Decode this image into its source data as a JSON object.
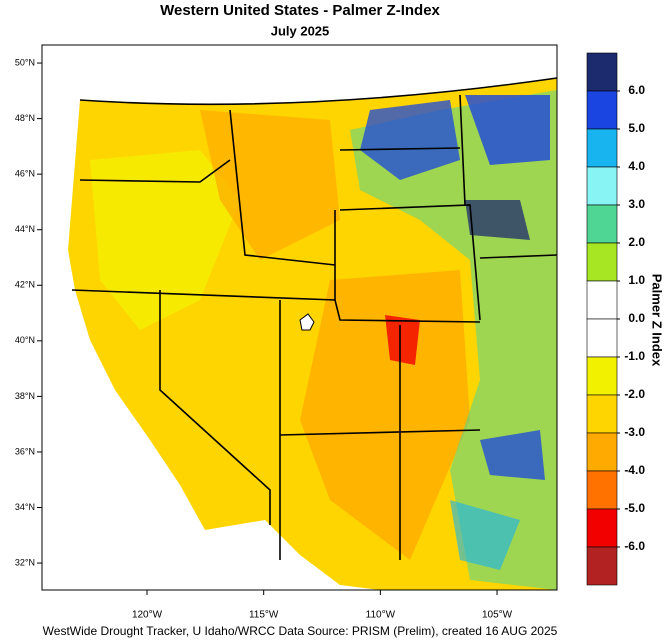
{
  "map": {
    "title": "Western United States - Palmer Z-Index",
    "subtitle": "July 2025",
    "footer": "WestWide Drought Tracker, U Idaho/WRCC Data Source: PRISM (Prelim), created 16 AUG 2025",
    "lonlim": [
      -124.5,
      -102.43
    ],
    "latlim": [
      31.03,
      50.65
    ],
    "latticks": [
      {
        "value": 50,
        "label": "50°N"
      },
      {
        "value": 48,
        "label": "48°N"
      },
      {
        "value": 46,
        "label": "46°N"
      },
      {
        "value": 44,
        "label": "44°N"
      },
      {
        "value": 42,
        "label": "42°N"
      },
      {
        "value": 40,
        "label": "40°N"
      },
      {
        "value": 38,
        "label": "38°N"
      },
      {
        "value": 36,
        "label": "36°N"
      },
      {
        "value": 34,
        "label": "34°N"
      },
      {
        "value": 32,
        "label": "32°N"
      }
    ],
    "lonticks": [
      {
        "value": -120,
        "label": "120°W"
      },
      {
        "value": -115,
        "label": "115°W"
      },
      {
        "value": -110,
        "label": "110°W"
      },
      {
        "value": -105,
        "label": "105°W"
      }
    ],
    "colorbar": {
      "title": "Palmer Z Index",
      "ticks": [
        {
          "value": 6,
          "label": "6.0"
        },
        {
          "value": 5,
          "label": "5.0"
        },
        {
          "value": 4,
          "label": "4.0"
        },
        {
          "value": 3,
          "label": "3.0"
        },
        {
          "value": 2,
          "label": "2.0"
        },
        {
          "value": 1,
          "label": "1.0"
        },
        {
          "value": 0,
          "label": "0.0"
        },
        {
          "value": -1,
          "label": "-1.0"
        },
        {
          "value": -2,
          "label": "-2.0"
        },
        {
          "value": -3,
          "label": "-3.0"
        },
        {
          "value": -4,
          "label": "-4.0"
        },
        {
          "value": -5,
          "label": "-5.0"
        },
        {
          "value": -6,
          "label": "-6.0"
        }
      ],
      "colors": [
        "#1c2a6e",
        "#1a45e0",
        "#18b4f0",
        "#88f4f4",
        "#4fd694",
        "#a6e622",
        "#ffffff",
        "#ffffff",
        "#f2f200",
        "#ffd500",
        "#ffaa00",
        "#ff7200",
        "#f20000",
        "#b22222"
      ]
    }
  }
}
